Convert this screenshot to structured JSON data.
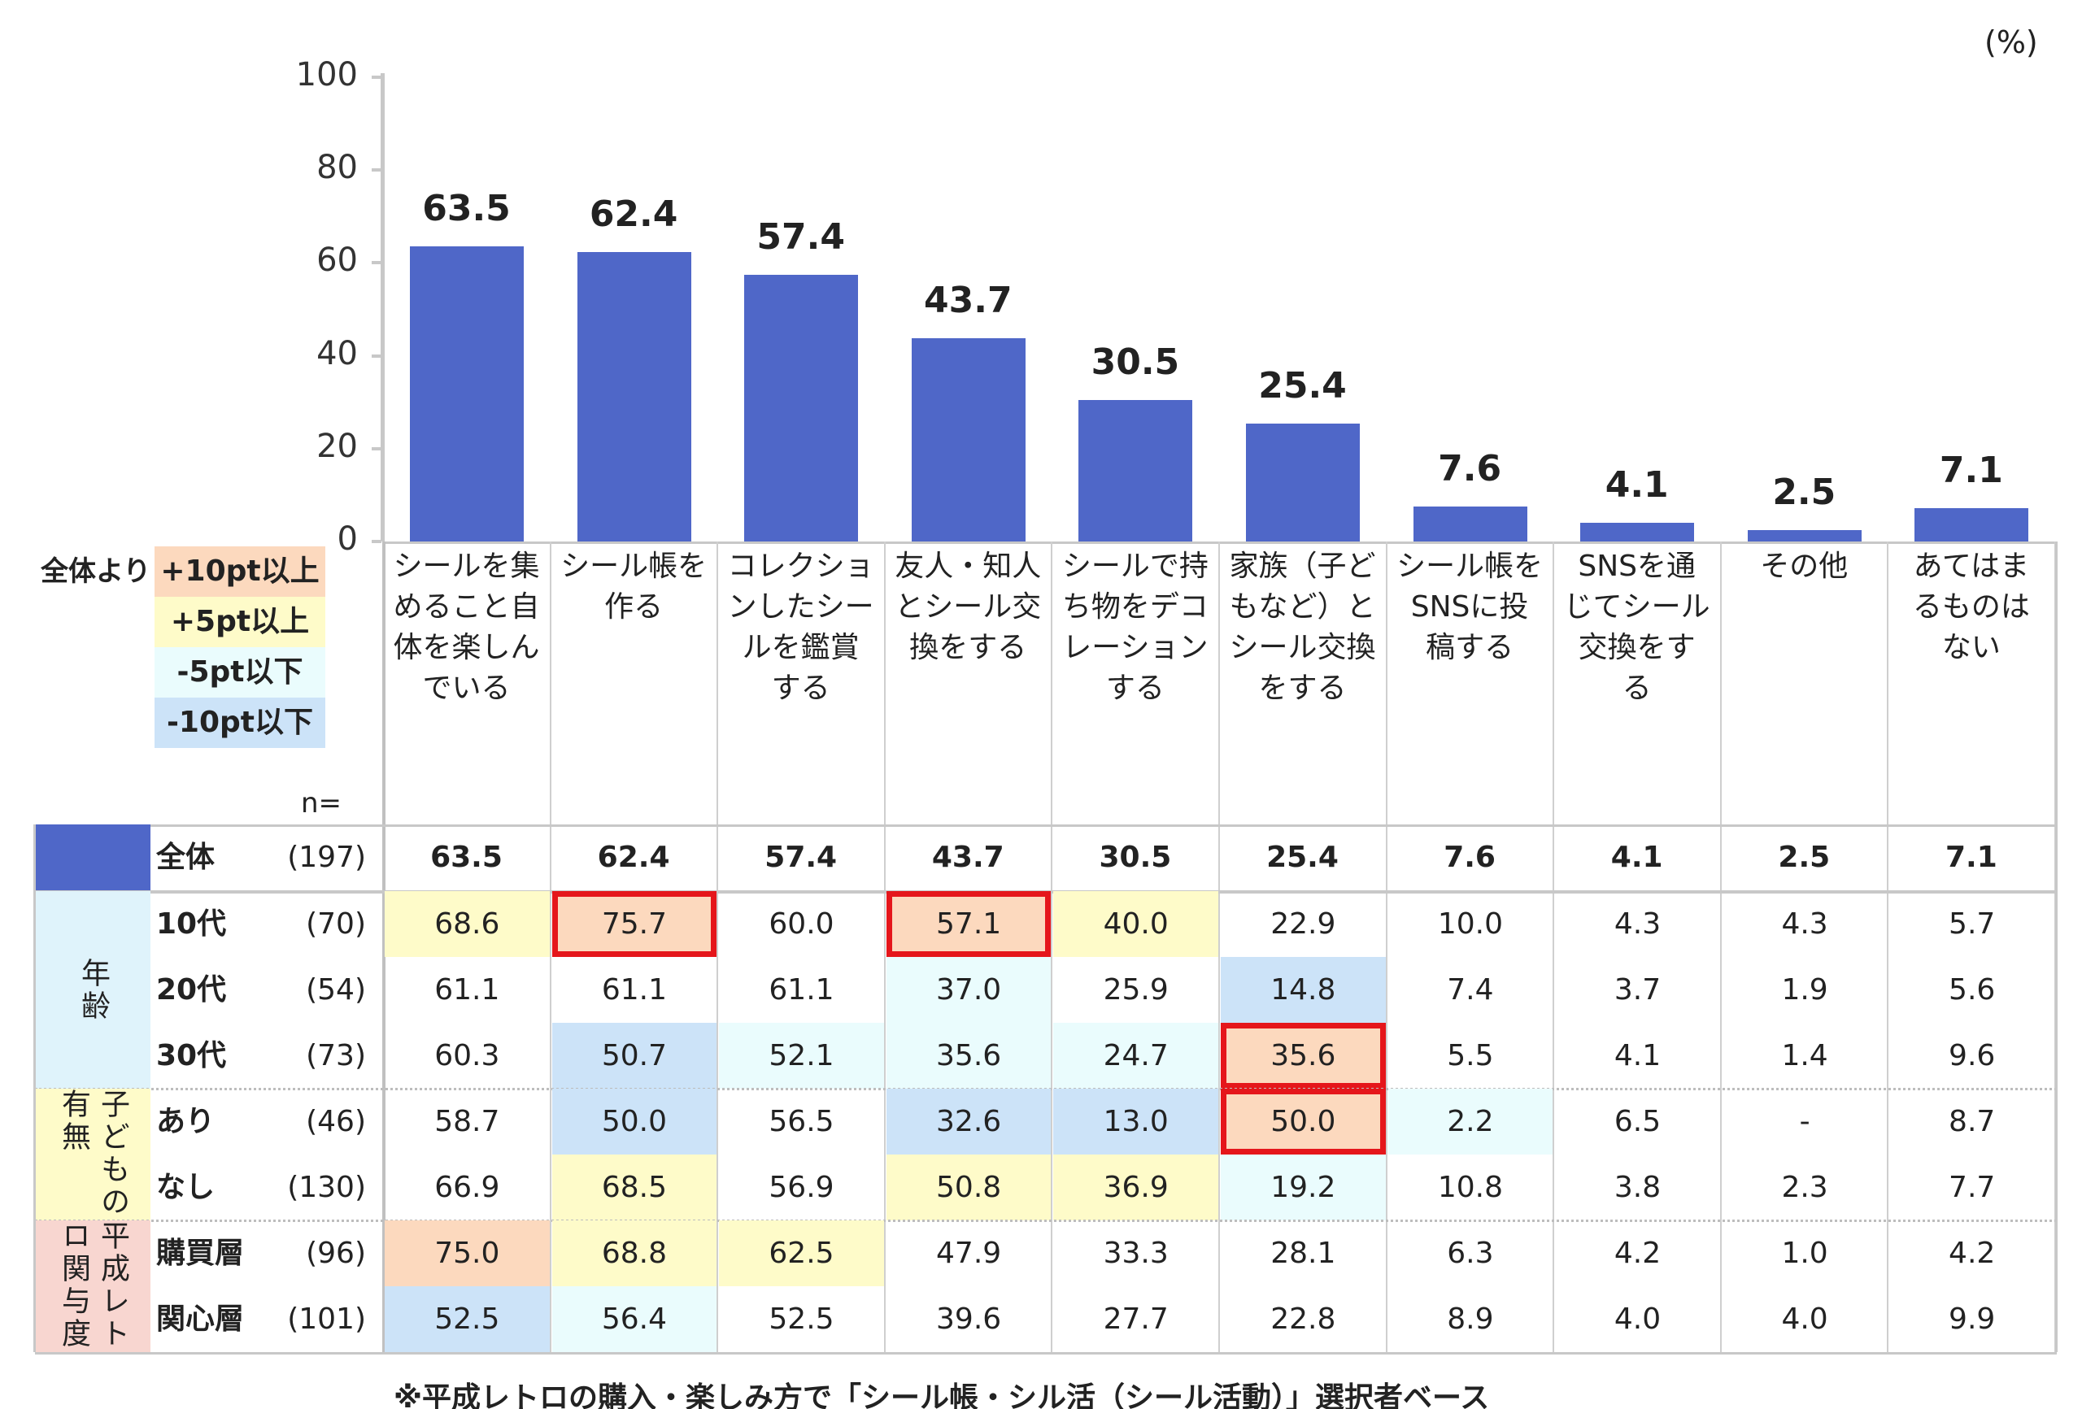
{
  "unit_label": "(%)",
  "legend": {
    "title": "全体より",
    "items": [
      {
        "label": "+10pt以上",
        "color": "#fcd9be"
      },
      {
        "label": "+5pt以上",
        "color": "#fefbc9"
      },
      {
        "label": "-5pt以下",
        "color": "#eafcfd"
      },
      {
        "label": "-10pt以下",
        "color": "#cce3f8"
      }
    ]
  },
  "n_label": "n=",
  "footnote": "※平成レトロの購入・楽しみ方で「シール帳・シル活（シール活動）」選択者ベース",
  "chart_data": {
    "type": "bar",
    "ylim": [
      0,
      100
    ],
    "yticks": [
      "0",
      "20",
      "40",
      "60",
      "80",
      "100"
    ],
    "categories": [
      "シールを集めること自体を楽しんでいる",
      "シール帳を作る",
      "コレクションしたシールを鑑賞する",
      "友人・知人とシール交換をする",
      "シールで持ち物をデコレーションする",
      "家族（子どもなど）とシール交換をする",
      "シール帳をSNSに投稿する",
      "SNSを通じてシール交換をする",
      "その他",
      "あてはまるものはない"
    ],
    "category_lines": [
      [
        "シールを集",
        "めること自",
        "体を楽しん",
        "でいる"
      ],
      [
        "シール帳を",
        "作る"
      ],
      [
        "コレクショ",
        "ンしたシー",
        "ルを鑑賞",
        "する"
      ],
      [
        "友人・知人",
        "とシール交",
        "換をする"
      ],
      [
        "シールで持",
        "ち物をデコ",
        "レーション",
        "する"
      ],
      [
        "家族（子ど",
        "もなど）と",
        "シール交換",
        "をする"
      ],
      [
        "シール帳を",
        "SNSに投",
        "稿する"
      ],
      [
        "SNSを通",
        "じてシール",
        "交換をす",
        "る"
      ],
      [
        "その他"
      ],
      [
        "あてはま",
        "るものは",
        "ない"
      ]
    ],
    "values": [
      63.5,
      62.4,
      57.4,
      43.7,
      30.5,
      25.4,
      7.6,
      4.1,
      2.5,
      7.1
    ],
    "value_labels": [
      "63.5",
      "62.4",
      "57.4",
      "43.7",
      "30.5",
      "25.4",
      "7.6",
      "4.1",
      "2.5",
      "7.1"
    ],
    "bar_color": "#4f67c8"
  },
  "table": {
    "total": {
      "label": "全体",
      "n": "(197)",
      "values": [
        "63.5",
        "62.4",
        "57.4",
        "43.7",
        "30.5",
        "25.4",
        "7.6",
        "4.1",
        "2.5",
        "7.1"
      ]
    },
    "groups": [
      {
        "label": "年齢",
        "color": "#dff3fb",
        "rows": [
          {
            "label": "10代",
            "n": "(70)",
            "values": [
              "68.6",
              "75.7",
              "60.0",
              "57.1",
              "40.0",
              "22.9",
              "10.0",
              "4.3",
              "4.3",
              "5.7"
            ],
            "shade": [
              "y",
              "o",
              "",
              "o",
              "y",
              "",
              "",
              "",
              "",
              ""
            ],
            "highlight": [
              false,
              true,
              false,
              true,
              false,
              false,
              false,
              false,
              false,
              false
            ]
          },
          {
            "label": "20代",
            "n": "(54)",
            "values": [
              "61.1",
              "61.1",
              "61.1",
              "37.0",
              "25.9",
              "14.8",
              "7.4",
              "3.7",
              "1.9",
              "5.6"
            ],
            "shade": [
              "",
              "",
              "",
              "c",
              "",
              "b",
              "",
              "",
              "",
              ""
            ],
            "highlight": [
              false,
              false,
              false,
              false,
              false,
              false,
              false,
              false,
              false,
              false
            ]
          },
          {
            "label": "30代",
            "n": "(73)",
            "values": [
              "60.3",
              "50.7",
              "52.1",
              "35.6",
              "24.7",
              "35.6",
              "5.5",
              "4.1",
              "1.4",
              "9.6"
            ],
            "shade": [
              "",
              "b",
              "c",
              "c",
              "c",
              "o",
              "",
              "",
              "",
              ""
            ],
            "highlight": [
              false,
              false,
              false,
              false,
              false,
              true,
              false,
              false,
              false,
              false
            ]
          }
        ]
      },
      {
        "label": "子どもの有無",
        "color": "#fefbc9",
        "rows": [
          {
            "label": "あり",
            "n": "(46)",
            "values": [
              "58.7",
              "50.0",
              "56.5",
              "32.6",
              "13.0",
              "50.0",
              "2.2",
              "6.5",
              "-",
              "8.7"
            ],
            "shade": [
              "",
              "b",
              "",
              "b",
              "b",
              "o",
              "c",
              "",
              "",
              ""
            ],
            "highlight": [
              false,
              false,
              false,
              false,
              false,
              true,
              false,
              false,
              false,
              false
            ]
          },
          {
            "label": "なし",
            "n": "(130)",
            "values": [
              "66.9",
              "68.5",
              "56.9",
              "50.8",
              "36.9",
              "19.2",
              "10.8",
              "3.8",
              "2.3",
              "7.7"
            ],
            "shade": [
              "",
              "y",
              "",
              "y",
              "y",
              "c",
              "",
              "",
              "",
              ""
            ],
            "highlight": [
              false,
              false,
              false,
              false,
              false,
              false,
              false,
              false,
              false,
              false
            ]
          }
        ]
      },
      {
        "label": "平成レトロ関与度",
        "color": "#f8d6d0",
        "rows": [
          {
            "label": "購買層",
            "n": "(96)",
            "values": [
              "75.0",
              "68.8",
              "62.5",
              "47.9",
              "33.3",
              "28.1",
              "6.3",
              "4.2",
              "1.0",
              "4.2"
            ],
            "shade": [
              "o",
              "y",
              "y",
              "",
              "",
              "",
              "",
              "",
              "",
              ""
            ],
            "highlight": [
              false,
              false,
              false,
              false,
              false,
              false,
              false,
              false,
              false,
              false
            ]
          },
          {
            "label": "関心層",
            "n": "(101)",
            "values": [
              "52.5",
              "56.4",
              "52.5",
              "39.6",
              "27.7",
              "22.8",
              "8.9",
              "4.0",
              "4.0",
              "9.9"
            ],
            "shade": [
              "b",
              "c",
              "",
              "",
              "",
              "",
              "",
              "",
              "",
              ""
            ],
            "highlight": [
              false,
              false,
              false,
              false,
              false,
              false,
              false,
              false,
              false,
              false
            ]
          }
        ]
      }
    ]
  }
}
